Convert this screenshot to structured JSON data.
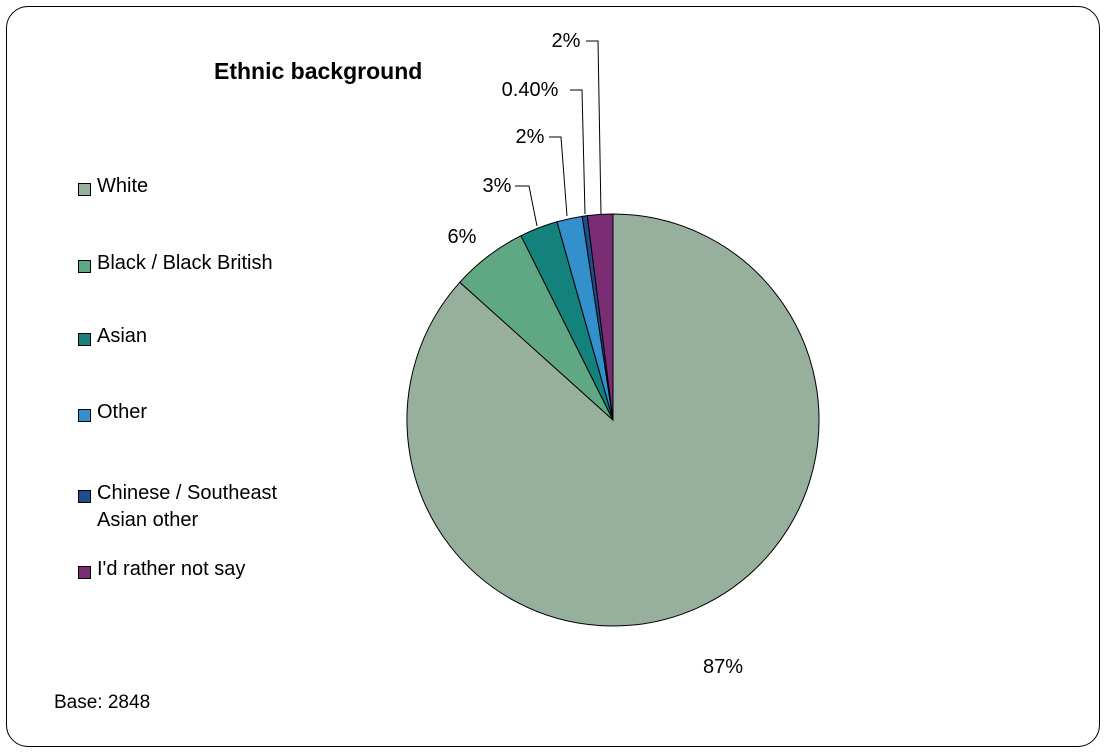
{
  "chart_data": {
    "type": "pie",
    "title": "Ethnic background",
    "note": "Base: 2848",
    "slices": [
      {
        "label": "White",
        "value": 87,
        "display": "87%",
        "color": "#97b09e"
      },
      {
        "label": "Black / Black British",
        "value": 6,
        "display": "6%",
        "color": "#5fa883"
      },
      {
        "label": "Asian",
        "value": 3,
        "display": "3%",
        "color": "#12827b"
      },
      {
        "label": "Other",
        "value": 2,
        "display": "2%",
        "color": "#3490cc"
      },
      {
        "label": "Chinese / Southeast Asian other",
        "value": 0.4,
        "display": "0.40%",
        "color": "#1f4e8c"
      },
      {
        "label": "I'd rather not say",
        "value": 2,
        "display": "2%",
        "color": "#7b2d73"
      }
    ],
    "legend_position": "left"
  }
}
